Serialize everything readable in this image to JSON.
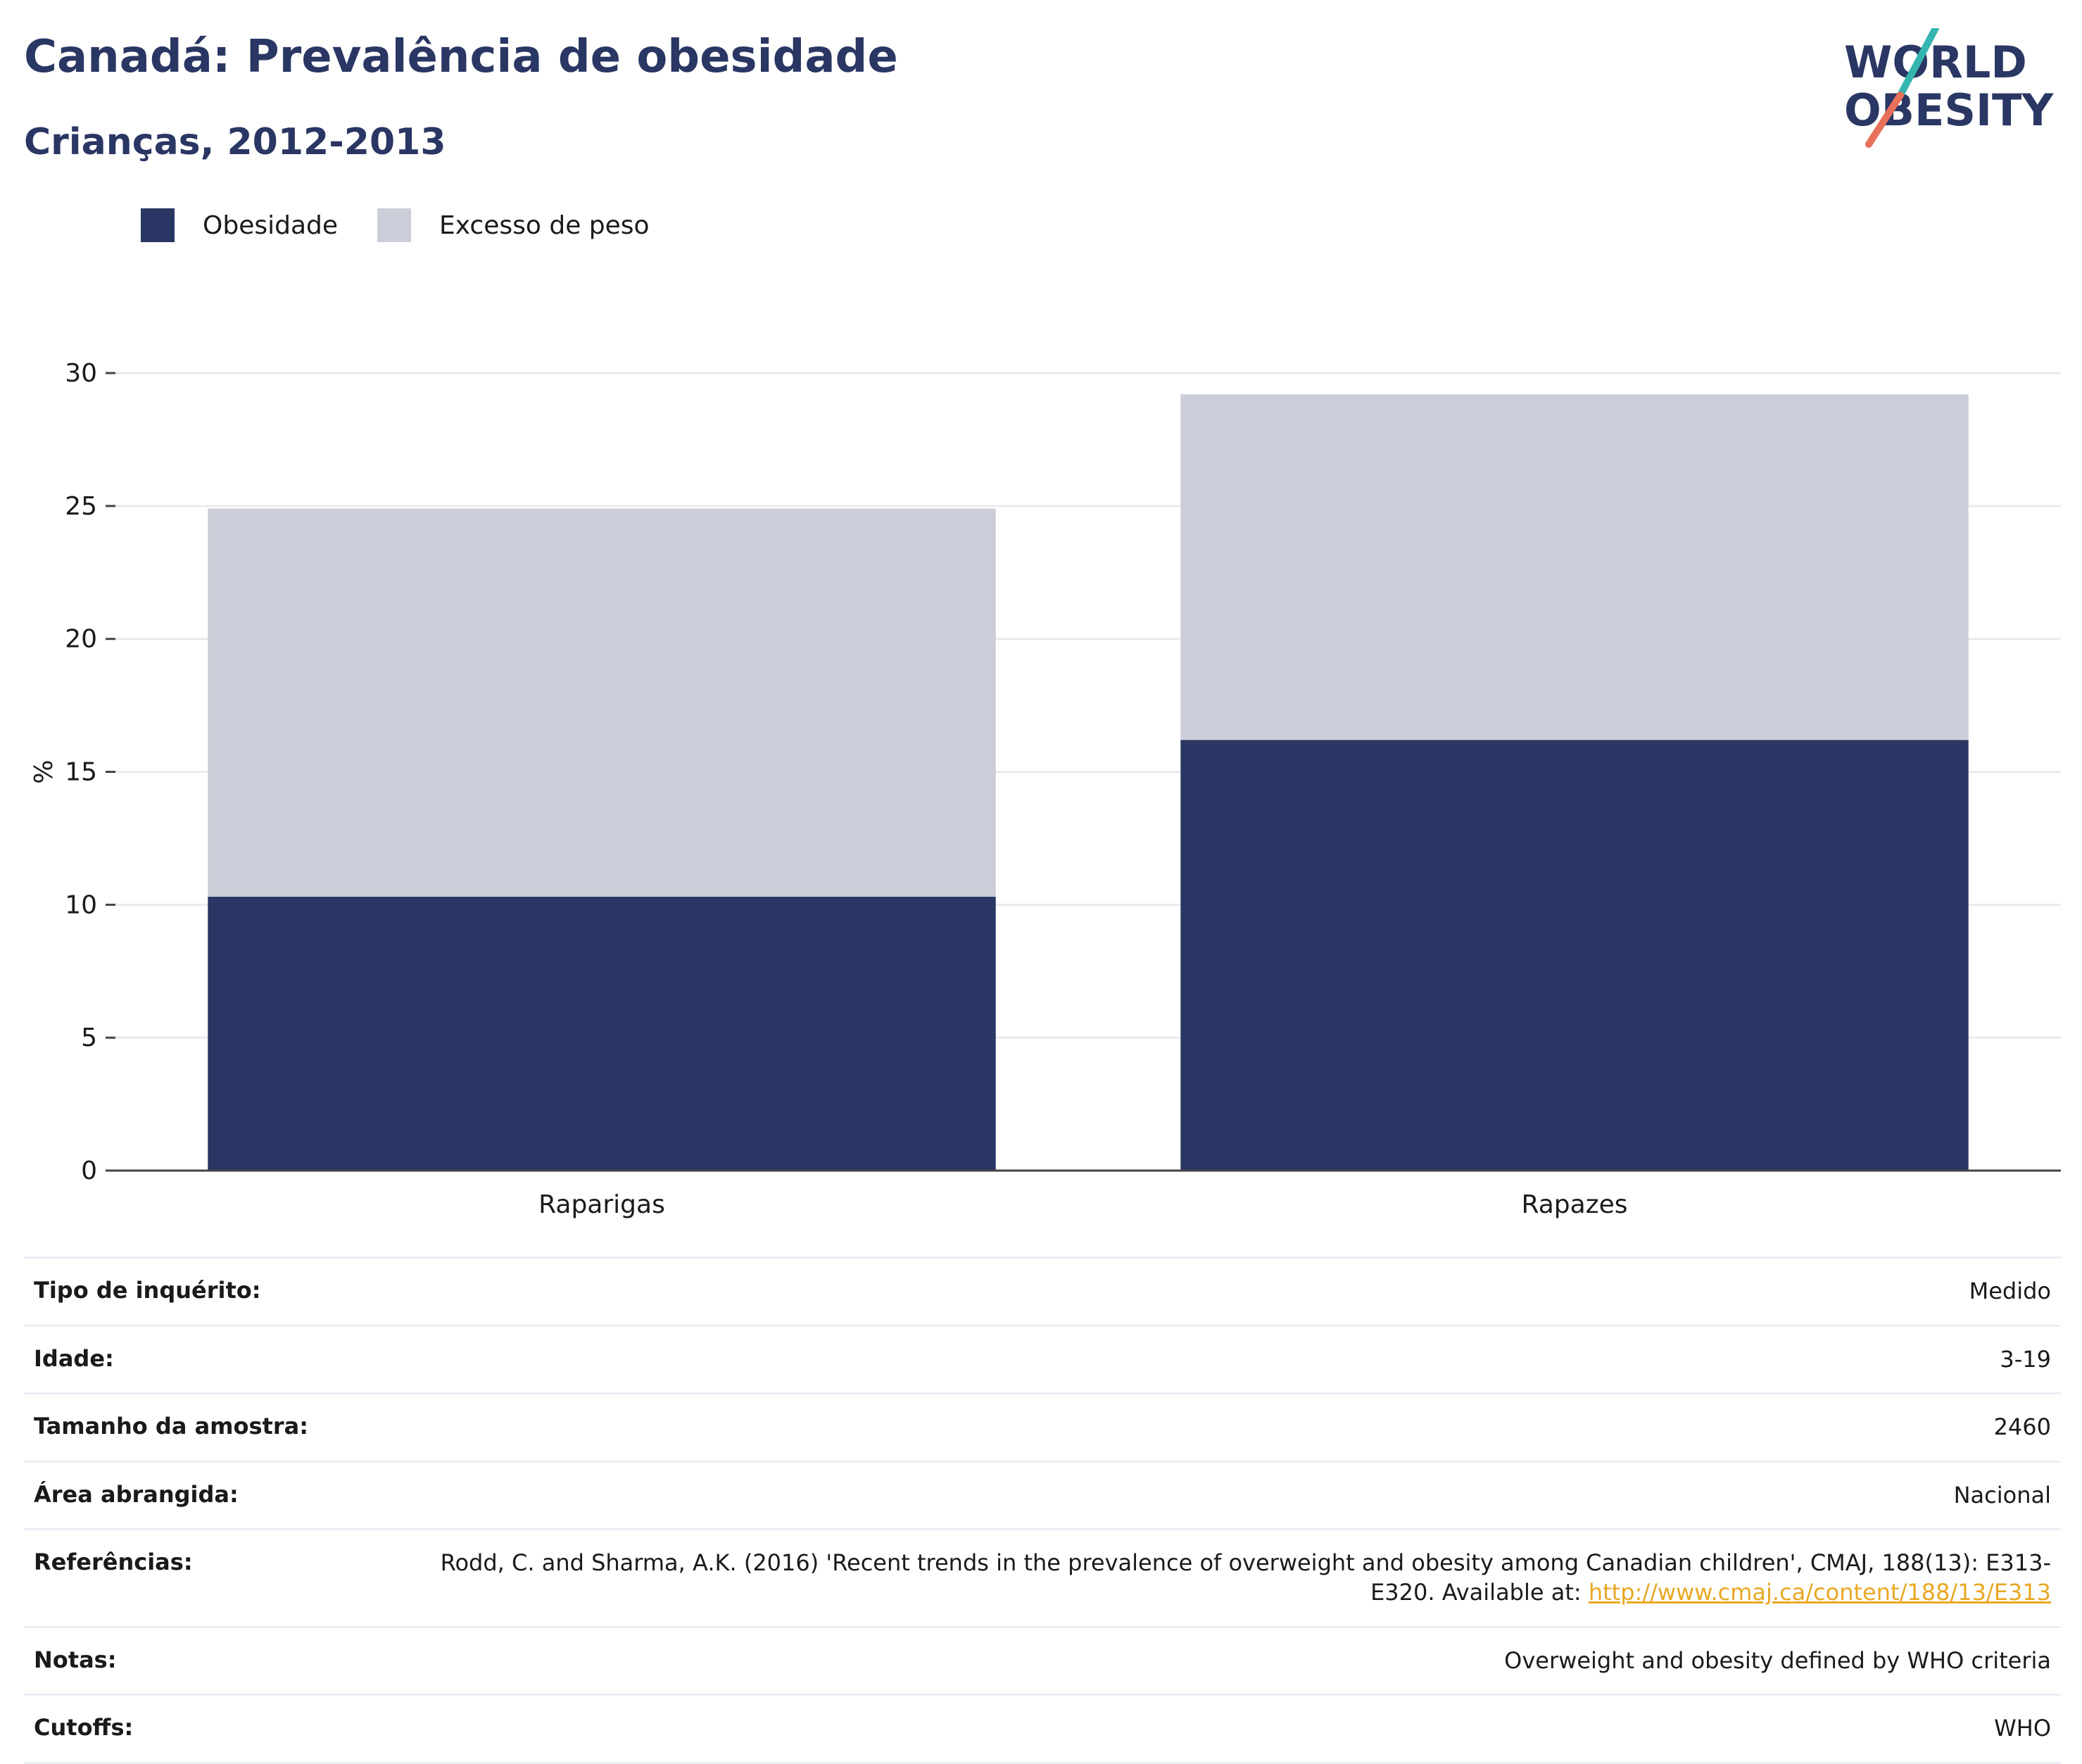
{
  "title": "Canadá: Prevalência de obesidade",
  "subtitle": "Crianças, 2012-2013",
  "logo": {
    "line1": "WORLD",
    "line2": "OBESITY"
  },
  "colors": {
    "obesity": "#2a3663",
    "overweight": "#cbcdd8",
    "accent_teal": "#35b5b0",
    "accent_coral": "#e8705a",
    "link": "#e8a824"
  },
  "legend": [
    {
      "label": "Obesidade",
      "color": "#2a3663"
    },
    {
      "label": "Excesso de peso",
      "color": "#cbcdd8"
    }
  ],
  "chart_data": {
    "type": "bar",
    "stacked": true,
    "categories": [
      "Raparigas",
      "Rapazes"
    ],
    "series": [
      {
        "name": "Obesidade",
        "values": [
          10.3,
          16.2
        ]
      },
      {
        "name": "Excesso de peso",
        "values": [
          14.6,
          13.0
        ]
      }
    ],
    "ylabel": "%",
    "ylim": [
      0,
      30
    ],
    "yticks": [
      0,
      5,
      10,
      15,
      20,
      25,
      30
    ],
    "grid": true,
    "legend_position": "top-left"
  },
  "info": [
    {
      "label": "Tipo de inquérito:",
      "value": "Medido"
    },
    {
      "label": "Idade:",
      "value": "3-19"
    },
    {
      "label": "Tamanho da amostra:",
      "value": "2460"
    },
    {
      "label": "Área abrangida:",
      "value": "Nacional"
    },
    {
      "label": "Referências:",
      "value": "Rodd, C. and Sharma, A.K. (2016) 'Recent trends in the prevalence of overweight and obesity among Canadian children', CMAJ, 188(13): E313-E320. Available at: ",
      "link": "http://www.cmaj.ca/content/188/13/E313"
    },
    {
      "label": "Notas:",
      "value": "Overweight and obesity defined by WHO criteria"
    },
    {
      "label": "Cutoffs:",
      "value": "WHO"
    }
  ]
}
